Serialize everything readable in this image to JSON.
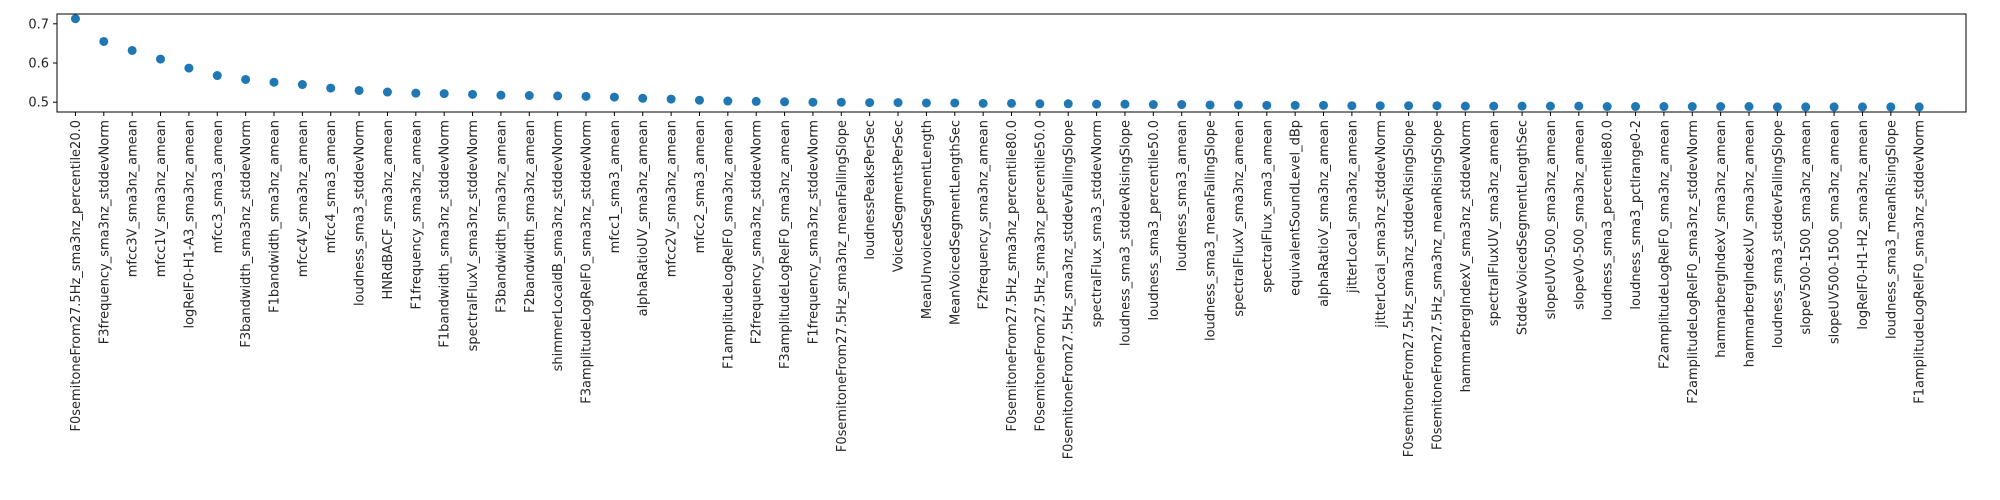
{
  "chart_data": {
    "type": "scatter",
    "title": "",
    "xlabel": "",
    "ylabel": "",
    "ylim": [
      0.475,
      0.725
    ],
    "yticks": [
      0.5,
      0.6,
      0.7
    ],
    "ytick_labels": [
      "0.5",
      "0.6",
      "0.7"
    ],
    "grid": false,
    "legend": "none",
    "marker_color": "#1f77b4",
    "categories": [
      "F0semitoneFrom27.5Hz_sma3nz_percentile20.0",
      "F3frequency_sma3nz_stddevNorm",
      "mfcc3V_sma3nz_amean",
      "mfcc1V_sma3nz_amean",
      "logRelF0-H1-A3_sma3nz_amean",
      "mfcc3_sma3_amean",
      "F3bandwidth_sma3nz_stddevNorm",
      "F1bandwidth_sma3nz_amean",
      "mfcc4V_sma3nz_amean",
      "mfcc4_sma3_amean",
      "loudness_sma3_stddevNorm",
      "HNRdBACF_sma3nz_amean",
      "F1frequency_sma3nz_amean",
      "F1bandwidth_sma3nz_stddevNorm",
      "spectralFluxV_sma3nz_stddevNorm",
      "F3bandwidth_sma3nz_amean",
      "F2bandwidth_sma3nz_amean",
      "shimmerLocaldB_sma3nz_stddevNorm",
      "F3amplitudeLogRelF0_sma3nz_stddevNorm",
      "mfcc1_sma3_amean",
      "alphaRatioUV_sma3nz_amean",
      "mfcc2V_sma3nz_amean",
      "mfcc2_sma3_amean",
      "F1amplitudeLogRelF0_sma3nz_amean",
      "F2frequency_sma3nz_stddevNorm",
      "F3amplitudeLogRelF0_sma3nz_amean",
      "F1frequency_sma3nz_stddevNorm",
      "F0semitoneFrom27.5Hz_sma3nz_meanFallingSlope",
      "loudnessPeaksPerSec",
      "VoicedSegmentsPerSec",
      "MeanUnvoicedSegmentLength",
      "MeanVoicedSegmentLengthSec",
      "F2frequency_sma3nz_amean",
      "F0semitoneFrom27.5Hz_sma3nz_percentile80.0",
      "F0semitoneFrom27.5Hz_sma3nz_percentile50.0",
      "F0semitoneFrom27.5Hz_sma3nz_stddevFallingSlope",
      "spectralFlux_sma3_stddevNorm",
      "loudness_sma3_stddevRisingSlope",
      "loudness_sma3_percentile50.0",
      "loudness_sma3_amean",
      "loudness_sma3_meanFallingSlope",
      "spectralFluxV_sma3nz_amean",
      "spectralFlux_sma3_amean",
      "equivalentSoundLevel_dBp",
      "alphaRatioV_sma3nz_amean",
      "jitterLocal_sma3nz_amean",
      "jitterLocal_sma3nz_stddevNorm",
      "F0semitoneFrom27.5Hz_sma3nz_stddevRisingSlope",
      "F0semitoneFrom27.5Hz_sma3nz_meanRisingSlope",
      "hammarbergIndexV_sma3nz_stddevNorm",
      "spectralFluxUV_sma3nz_amean",
      "StddevVoicedSegmentLengthSec",
      "slopeUV0-500_sma3nz_amean",
      "slopeV0-500_sma3nz_amean",
      "loudness_sma3_percentile80.0",
      "loudness_sma3_pctlrange0-2",
      "F2amplitudeLogRelF0_sma3nz_amean",
      "F2amplitudeLogRelF0_sma3nz_stddevNorm",
      "hammarbergIndexV_sma3nz_amean",
      "hammarbergIndexUV_sma3nz_amean",
      "loudness_sma3_stddevFallingSlope",
      "slopeV500-1500_sma3nz_amean",
      "slopeUV500-1500_sma3nz_amean",
      "logRelF0-H1-H2_sma3nz_amean",
      "loudness_sma3_meanRisingSlope",
      "F1amplitudeLogRelF0_sma3nz_stddevNorm"
    ],
    "values": [
      0.713,
      0.655,
      0.632,
      0.61,
      0.587,
      0.568,
      0.558,
      0.551,
      0.545,
      0.536,
      0.53,
      0.526,
      0.523,
      0.522,
      0.52,
      0.518,
      0.517,
      0.516,
      0.515,
      0.513,
      0.51,
      0.508,
      0.505,
      0.503,
      0.502,
      0.501,
      0.5,
      0.5,
      0.499,
      0.499,
      0.498,
      0.498,
      0.497,
      0.497,
      0.496,
      0.496,
      0.495,
      0.495,
      0.494,
      0.494,
      0.493,
      0.493,
      0.492,
      0.492,
      0.492,
      0.491,
      0.491,
      0.491,
      0.491,
      0.49,
      0.49,
      0.49,
      0.49,
      0.49,
      0.489,
      0.489,
      0.489,
      0.489,
      0.489,
      0.489,
      0.488,
      0.488,
      0.488,
      0.488,
      0.488,
      0.488
    ]
  }
}
